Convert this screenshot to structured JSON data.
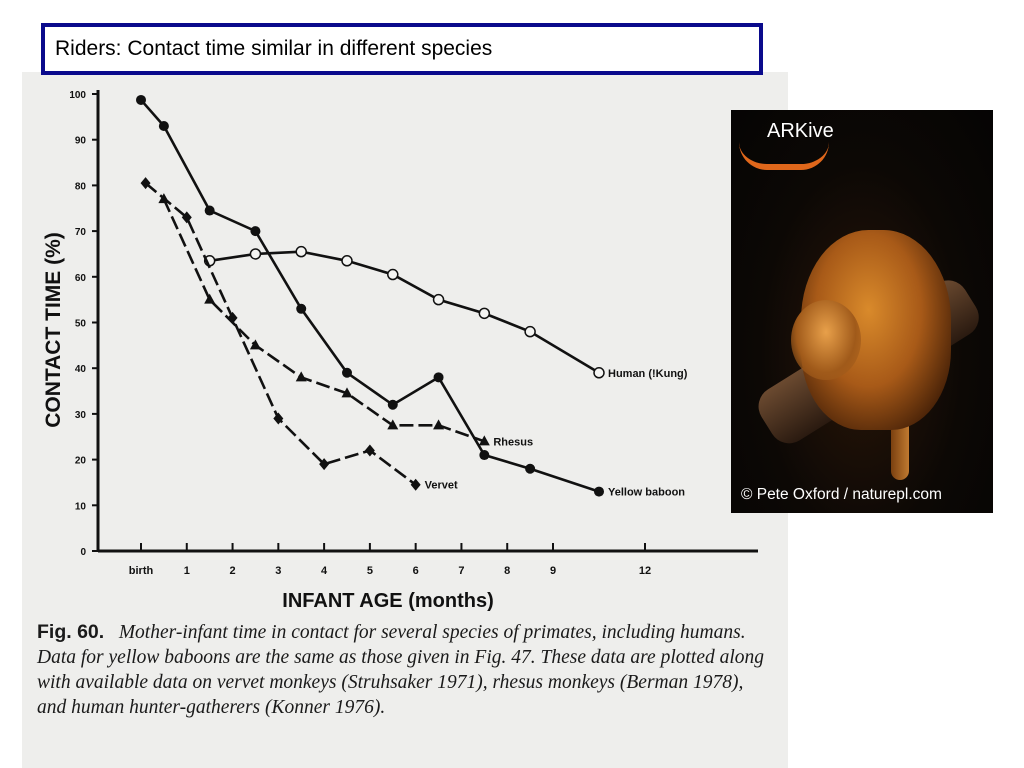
{
  "slide": {
    "title": "Riders: Contact time similar in different species"
  },
  "caption": {
    "label": "Fig. 60.",
    "text": "Mother-infant time in contact for several species of primates, including humans. Data for yellow baboons are the same as those given in Fig. 47. These data are plotted along with available data on vervet monkeys (Struhsaker 1971), rhesus monkeys (Berman 1978), and human hunter-gatherers (Konner 1976)."
  },
  "photo": {
    "logo": "ARKive",
    "credit": "© Pete Oxford / naturepl.com"
  },
  "chart_data": {
    "type": "line",
    "title": "",
    "xlabel": "INFANT AGE (months)",
    "ylabel": "CONTACT TIME (%)",
    "ylim": [
      0,
      100
    ],
    "yticks": [
      0,
      10,
      20,
      30,
      40,
      50,
      60,
      70,
      80,
      90,
      100
    ],
    "xticks": [
      {
        "label": "birth",
        "value": 0
      },
      {
        "label": "1",
        "value": 1
      },
      {
        "label": "2",
        "value": 2
      },
      {
        "label": "3",
        "value": 3
      },
      {
        "label": "4",
        "value": 4
      },
      {
        "label": "5",
        "value": 5
      },
      {
        "label": "6",
        "value": 6
      },
      {
        "label": "7",
        "value": 7
      },
      {
        "label": "8",
        "value": 8
      },
      {
        "label": "9",
        "value": 9
      },
      {
        "label": "12",
        "value": 12
      }
    ],
    "grid": false,
    "series": [
      {
        "name": "Yellow baboon",
        "marker": "filled-circle",
        "line": "solid",
        "x": [
          0,
          0.5,
          1.5,
          2.5,
          3.5,
          4.5,
          5.5,
          6.5,
          7.5,
          8.5,
          10.5
        ],
        "y": [
          98.7,
          93,
          74.5,
          70,
          53,
          39,
          32,
          38,
          21,
          18,
          13
        ]
      },
      {
        "name": "Human (!Kung)",
        "marker": "open-circle",
        "line": "solid",
        "x": [
          1.5,
          2.5,
          3.5,
          4.5,
          5.5,
          6.5,
          7.5,
          8.5,
          10.5
        ],
        "y": [
          63.5,
          65,
          65.5,
          63.5,
          60.5,
          55,
          52,
          48,
          39
        ]
      },
      {
        "name": "Rhesus",
        "marker": "triangle",
        "line": "dashed",
        "x": [
          0.5,
          1.5,
          2.5,
          3.5,
          4.5,
          5.5,
          6.5,
          7.5
        ],
        "y": [
          77,
          55,
          45,
          38,
          34.5,
          27.5,
          27.5,
          24
        ]
      },
      {
        "name": "Vervet",
        "marker": "diamond",
        "line": "dashed",
        "x": [
          0.1,
          1,
          2,
          3,
          4,
          5,
          6
        ],
        "y": [
          80.5,
          73,
          51,
          29,
          19,
          22,
          14.5
        ]
      }
    ]
  }
}
